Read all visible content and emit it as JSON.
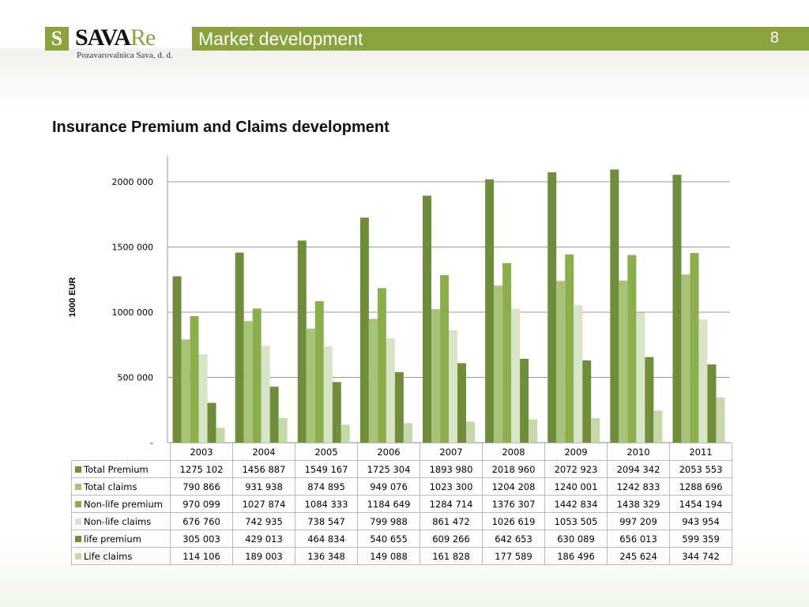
{
  "header": {
    "logo_letter": "S",
    "logo_text": "SAVA",
    "logo_suffix": "Re",
    "logo_subtitle": "Pozavarovalnica Sava, d. d.",
    "section_title": "Market development",
    "page_number": "8",
    "brand_color": "#8aa33c"
  },
  "slide_title": "Insurance Premium and Claims development",
  "chart_data": {
    "type": "bar",
    "ylabel": "1000 EUR",
    "ylim": [
      0,
      2200000
    ],
    "yticks": [
      0,
      500000,
      1000000,
      1500000,
      2000000
    ],
    "ytick_labels": [
      "-",
      "500 000",
      "1000 000",
      "1500 000",
      "2000 000"
    ],
    "grid": true,
    "categories": [
      "2003",
      "2004",
      "2005",
      "2006",
      "2007",
      "2008",
      "2009",
      "2010",
      "2011"
    ],
    "series": [
      {
        "name": "Total Premium",
        "color": "#6f8d3a",
        "values": [
          1275102,
          1456887,
          1549167,
          1725304,
          1893980,
          2018960,
          2072923,
          2094342,
          2053553
        ],
        "labels": [
          "1275 102",
          "1456 887",
          "1549 167",
          "1725 304",
          "1893 980",
          "2018 960",
          "2072 923",
          "2094 342",
          "2053 553"
        ]
      },
      {
        "name": "Total claims",
        "color": "#a8c27a",
        "values": [
          790866,
          931938,
          874895,
          949076,
          1023300,
          1204208,
          1240001,
          1242833,
          1288696
        ],
        "labels": [
          "790 866",
          "931 938",
          "874 895",
          "949 076",
          "1023 300",
          "1204 208",
          "1240 001",
          "1242 833",
          "1288 696"
        ]
      },
      {
        "name": "Non-life premium",
        "color": "#8cae4c",
        "values": [
          970099,
          1027874,
          1084333,
          1184649,
          1284714,
          1376307,
          1442834,
          1438329,
          1454194
        ],
        "labels": [
          "970 099",
          "1027 874",
          "1084 333",
          "1184 649",
          "1284 714",
          "1376 307",
          "1442 834",
          "1438 329",
          "1454 194"
        ]
      },
      {
        "name": "Non-life claims",
        "color": "#d8e4c6",
        "values": [
          676760,
          742935,
          738547,
          799988,
          861472,
          1026619,
          1053505,
          997209,
          943954
        ],
        "labels": [
          "676 760",
          "742 935",
          "738 547",
          "799 988",
          "861 472",
          "1026 619",
          "1053 505",
          "997 209",
          "943 954"
        ]
      },
      {
        "name": "life premium",
        "color": "#6f8d3a",
        "values": [
          305003,
          429013,
          464834,
          540655,
          609266,
          642653,
          630089,
          656013,
          599359
        ],
        "labels": [
          "305 003",
          "429 013",
          "464 834",
          "540 655",
          "609 266",
          "642 653",
          "630 089",
          "656 013",
          "599 359"
        ]
      },
      {
        "name": "Life claims",
        "color": "#c6d8aa",
        "values": [
          114106,
          189003,
          136348,
          149088,
          161828,
          177589,
          186496,
          245624,
          344742
        ],
        "labels": [
          "114 106",
          "189 003",
          "136 348",
          "149 088",
          "161 828",
          "177 589",
          "186 496",
          "245 624",
          "344 742"
        ]
      }
    ]
  }
}
